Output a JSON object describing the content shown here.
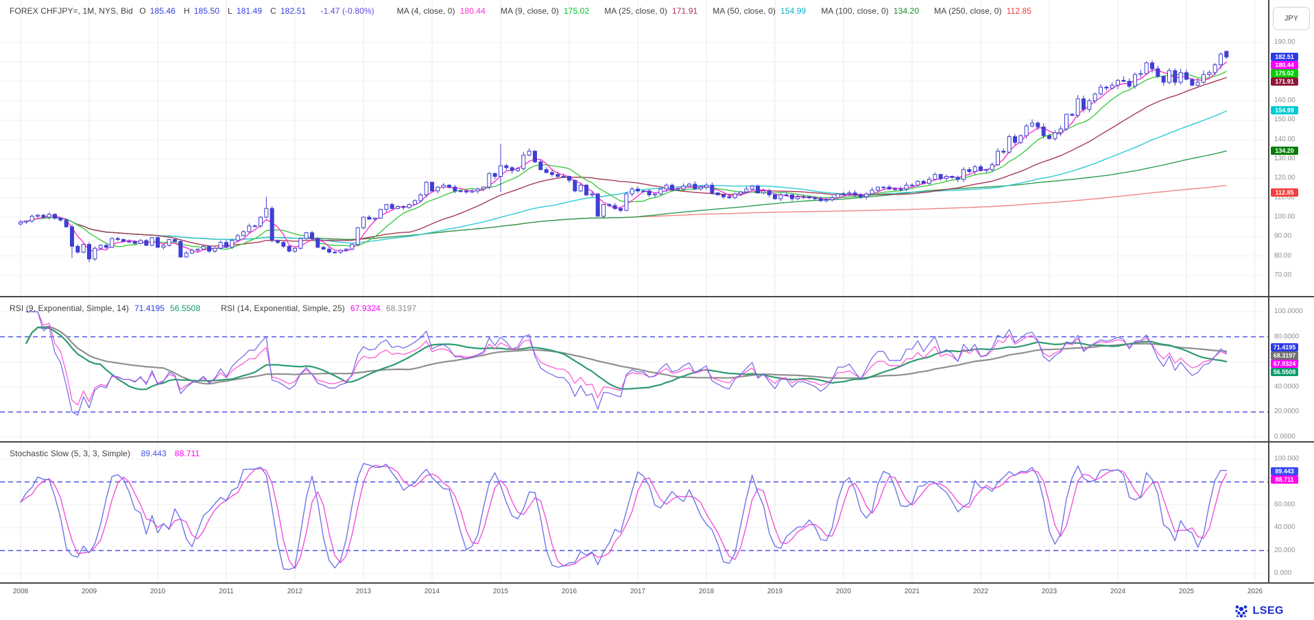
{
  "header": {
    "instrument": "FOREX CHFJPY=, 1M, NYS, Bid",
    "ohlc": [
      {
        "label": "O",
        "value": "185.46"
      },
      {
        "label": "H",
        "value": "185.50"
      },
      {
        "label": "L",
        "value": "181.49"
      },
      {
        "label": "C",
        "value": "182.51"
      }
    ],
    "change": "-1.47 (-0.80%)",
    "ma_legend": [
      {
        "label": "MA (4, close, 0)",
        "value": "180.44",
        "color": "#ff2fd1"
      },
      {
        "label": "MA (9, close, 0)",
        "value": "175.02",
        "color": "#00bf1f"
      },
      {
        "label": "MA (25, close, 0)",
        "value": "171.91",
        "color": "#b02a50"
      },
      {
        "label": "MA (50, close, 0)",
        "value": "154.99",
        "color": "#00b5c9"
      },
      {
        "label": "MA (100, close, 0)",
        "value": "134.20",
        "color": "#0f8f22"
      },
      {
        "label": "MA (250, close, 0)",
        "value": "112.85",
        "color": "#f23b3b"
      }
    ],
    "currency_button": "JPY"
  },
  "rsi_legend": {
    "groups": [
      {
        "label": "RSI (9, Exponential, Simple, 14)",
        "values": [
          {
            "text": "71.4195",
            "color": "#2f3de0"
          },
          {
            "text": "56.5508",
            "color": "#0d9a67"
          }
        ]
      },
      {
        "label": "RSI (14, Exponential, Simple, 25)",
        "values": [
          {
            "text": "67.9324",
            "color": "#ff00ff"
          },
          {
            "text": "68.3197",
            "color": "#8a8a8a"
          }
        ]
      }
    ]
  },
  "stoch_legend": {
    "label": "Stochastic Slow (5, 3, 3, Simple)",
    "values": [
      {
        "text": "89.443",
        "color": "#4553ef"
      },
      {
        "text": "88.711",
        "color": "#ff00e8"
      }
    ]
  },
  "axes": {
    "main_ticks": [
      "190.00",
      "180.00",
      "170.00",
      "160.00",
      "150.00",
      "140.00",
      "130.00",
      "120.00",
      "110.00",
      "100.00",
      "90.00",
      "80.00",
      "70.00"
    ],
    "rsi_ticks": [
      "100.0000",
      "80.0000",
      "60.0000",
      "40.0000",
      "20.0000",
      "0.0000"
    ],
    "stoch_ticks": [
      "100.000",
      "80.000",
      "60.000",
      "40.000",
      "20.000",
      "0.000"
    ]
  },
  "badges": {
    "main": [
      {
        "text": "182.51",
        "color": "#2b3ae8"
      },
      {
        "text": "180.44",
        "color": "#ff00ff"
      },
      {
        "text": "175.02",
        "color": "#00cc00"
      },
      {
        "text": "171.91",
        "color": "#8e1537"
      },
      {
        "text": "154.99",
        "color": "#00c8d2"
      },
      {
        "text": "134.20",
        "color": "#077d07"
      },
      {
        "text": "112.85",
        "color": "#f53d3d"
      }
    ],
    "rsi": [
      {
        "text": "71.4195",
        "color": "#2b3ae8"
      },
      {
        "text": "68.3197",
        "color": "#6f6f6f"
      },
      {
        "text": "67.9324",
        "color": "#ff00ff"
      },
      {
        "text": "56.5508",
        "color": "#089a67"
      }
    ],
    "stoch": [
      {
        "text": "89.443",
        "color": "#3a49f0"
      },
      {
        "text": "88.711",
        "color": "#ff00e8"
      }
    ]
  },
  "x_axis": {
    "years": [
      "2008",
      "2009",
      "2010",
      "2011",
      "2012",
      "2013",
      "2014",
      "2015",
      "2016",
      "2017",
      "2018",
      "2019",
      "2020",
      "2021",
      "2022",
      "2023",
      "2024",
      "2025",
      "2026"
    ]
  },
  "branding": {
    "logo": "LSEG"
  },
  "chart_data": {
    "type": "candlestick",
    "title": "FOREX CHFJPY= monthly with MA overlays, RSI and Stochastic Slow sub-panels",
    "interval": "monthly",
    "x_first": "2008-01",
    "x_last": "2025-08",
    "ylim_main": [
      70,
      190
    ],
    "ylim_oscillators": [
      0,
      100
    ],
    "monthly_close": [
      97.5,
      98.0,
      100.5,
      101.0,
      100.0,
      101.5,
      99.5,
      98.5,
      95.0,
      85.0,
      82.0,
      86.0,
      78.5,
      84.0,
      85.5,
      84.5,
      89.0,
      88.5,
      87.5,
      87.5,
      86.5,
      88.0,
      85.5,
      89.5,
      84.5,
      85.5,
      88.5,
      87.5,
      79.5,
      81.5,
      83.0,
      83.5,
      85.0,
      82.5,
      84.0,
      87.0,
      84.5,
      88.0,
      90.5,
      92.5,
      95.5,
      95.5,
      100.0,
      104.5,
      88.0,
      87.0,
      85.0,
      82.5,
      84.0,
      89.0,
      92.0,
      89.0,
      84.5,
      83.5,
      82.0,
      82.0,
      83.0,
      83.5,
      86.0,
      94.5,
      100.0,
      99.0,
      99.5,
      104.0,
      106.5,
      104.5,
      105.5,
      105.0,
      106.5,
      108.5,
      111.5,
      118.0,
      113.5,
      115.5,
      116.5,
      115.5,
      113.5,
      113.5,
      113.0,
      113.5,
      114.5,
      115.5,
      122.5,
      121.0,
      126.5,
      125.5,
      124.0,
      125.0,
      132.0,
      134.0,
      128.5,
      124.5,
      123.0,
      122.0,
      121.0,
      121.0,
      119.0,
      113.5,
      116.5,
      111.5,
      112.0,
      100.5,
      106.5,
      106.0,
      104.5,
      103.5,
      112.0,
      114.5,
      113.5,
      113.5,
      111.5,
      112.0,
      114.5,
      116.5,
      114.0,
      114.5,
      116.0,
      117.0,
      114.5,
      115.5,
      116.5,
      112.5,
      111.5,
      110.5,
      110.0,
      112.0,
      113.0,
      114.5,
      116.0,
      112.5,
      113.5,
      111.5,
      109.5,
      111.5,
      111.5,
      109.5,
      110.5,
      110.5,
      110.0,
      109.5,
      108.5,
      109.0,
      110.0,
      112.0,
      112.0,
      112.5,
      111.5,
      110.5,
      112.0,
      114.0,
      115.5,
      115.5,
      114.5,
      114.5,
      114.5,
      116.5,
      116.5,
      118.5,
      117.5,
      119.5,
      122.0,
      120.0,
      121.0,
      120.5,
      119.5,
      124.5,
      123.5,
      126.0,
      124.0,
      124.5,
      127.0,
      134.0,
      133.5,
      141.5,
      138.5,
      142.0,
      147.0,
      148.5,
      146.5,
      142.0,
      140.5,
      143.5,
      145.5,
      153.0,
      152.5,
      161.0,
      155.5,
      160.0,
      163.5,
      167.0,
      166.5,
      168.0,
      170.5,
      170.0,
      167.5,
      173.5,
      174.0,
      179.5,
      176.5,
      172.5,
      169.5,
      175.5,
      169.5,
      174.5,
      171.0,
      168.0,
      169.5,
      173.5,
      174.5,
      178.5,
      184.0,
      182.51
    ],
    "wick_overrides": {
      "9": {
        "low": 79.0
      },
      "12": {
        "low": 76.8
      },
      "43": {
        "high": 110.5,
        "low": 99.5
      },
      "84": {
        "high": 137.8,
        "low": 113.0
      }
    },
    "last_candle": {
      "open": 185.46,
      "high": 185.5,
      "low": 181.49,
      "close": 182.51
    },
    "moving_averages": [
      {
        "window": 250,
        "color": "#f28585",
        "current": 112.85
      },
      {
        "window": 100,
        "color": "#2f9e4f",
        "current": 134.2
      },
      {
        "window": 50,
        "color": "#2fc9d6",
        "current": 154.99
      },
      {
        "window": 25,
        "color": "#a63a55",
        "current": 171.91
      },
      {
        "window": 9,
        "color": "#3fc93f",
        "current": 175.02
      },
      {
        "window": 4,
        "color": "#ff2fd1",
        "current": 180.44
      }
    ],
    "indicators": {
      "rsi": {
        "levels": [
          80,
          20
        ],
        "lines": [
          {
            "name": "rsi-25-sma-of-rsi14",
            "color": "#8f8f8f",
            "width": 2.2,
            "current": 68.3197
          },
          {
            "name": "rsi-14-sma-of-rsi9",
            "color": "#2e9a6e",
            "width": 2.2,
            "current": 56.5508
          },
          {
            "name": "rsi-14",
            "color": "#ff4fd0",
            "width": 1.2,
            "current": 67.9324
          },
          {
            "name": "rsi-9",
            "color": "#6b63e8",
            "width": 1.2,
            "current": 71.4195
          }
        ]
      },
      "stochastic": {
        "levels": [
          80,
          20
        ],
        "lines": [
          {
            "name": "slow-d",
            "color": "#f14fd8",
            "width": 1.4,
            "current": 88.711
          },
          {
            "name": "slow-k",
            "color": "#6b74e8",
            "width": 1.4,
            "current": 89.443
          }
        ]
      }
    }
  },
  "colors": {
    "candle_stroke": "#3d3dcf",
    "candle_down_fill": "#3f3fd6",
    "candle_up_fill": "#ffffff",
    "value_blue": "#2f3de0",
    "change_text": "#5b45e0",
    "dashed_level": "#5a5ae8",
    "grid_v": "#e9e9ec",
    "grid_h": "#f0f0f2"
  }
}
